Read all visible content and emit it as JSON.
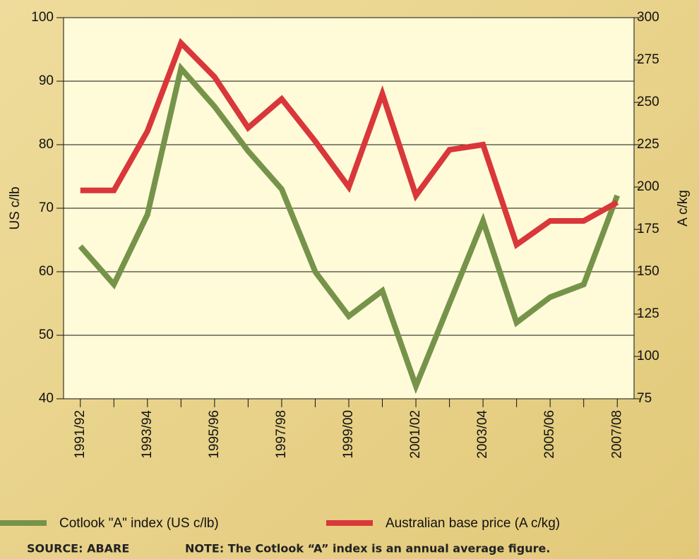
{
  "chart_data": {
    "type": "line",
    "categories": [
      "1991/92",
      null,
      "1993/94",
      null,
      "1995/96",
      null,
      "1997/98",
      null,
      "1999/00",
      null,
      "2001/02",
      null,
      "2003/04",
      null,
      "2005/06",
      null,
      "2007/08"
    ],
    "series": [
      {
        "name": "Cotlook \"A\" index (US c/lb)",
        "color": "#76934a",
        "values": [
          64,
          58,
          69,
          92,
          86,
          79,
          73,
          60,
          53,
          57,
          42,
          55,
          68,
          52,
          56,
          58,
          72
        ]
      },
      {
        "name": "Australian base price (A c/kg)",
        "color": "#d9373a",
        "axis": "y2",
        "values": [
          198,
          198,
          233,
          285,
          265,
          235,
          252,
          227,
          200,
          255,
          195,
          222,
          225,
          166,
          180,
          180,
          191
        ]
      }
    ],
    "y_label": "US c/lb",
    "y2_label": "A c/kg",
    "ylim": [
      40,
      100
    ],
    "yticks": [
      40,
      50,
      60,
      70,
      80,
      90,
      100
    ],
    "y2lim": [
      75,
      300
    ],
    "y2ticks": [
      75,
      100,
      125,
      150,
      175,
      200,
      225,
      250,
      275,
      300
    ],
    "grid": true,
    "source": "SOURCE: ABARE",
    "note": "NOTE: The Cotlook “A” index is an annual average figure."
  }
}
